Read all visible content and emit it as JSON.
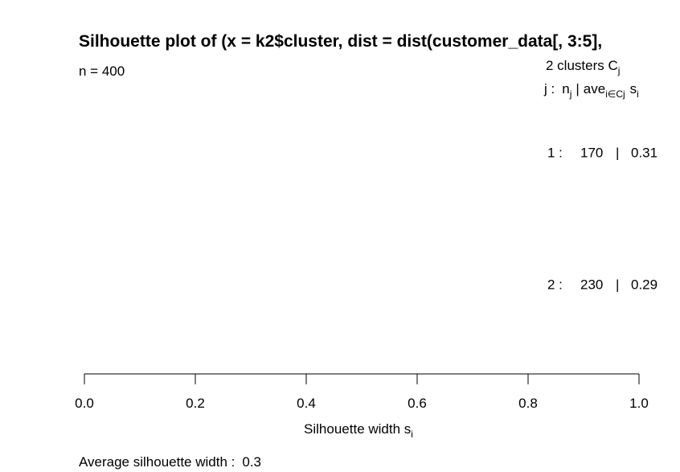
{
  "chart_data": {
    "type": "bar",
    "title": "Silhouette plot of (x = k2$cluster, dist = dist(customer_data[, 3:5],",
    "n_label": "n = 400",
    "clusters_header": "2  clusters  C",
    "clusters_header_sub": "j",
    "legend_header": {
      "j": "j :",
      "n": "n",
      "n_sub": "j",
      "sep": "|",
      "ave": "ave",
      "ave_sub": "i∈Cj",
      "s": "s",
      "s_sub": "i"
    },
    "clusters": [
      {
        "label": "1 :",
        "n": 170,
        "n_text": "170",
        "avg": 0.31,
        "avg_text": "0.31"
      },
      {
        "label": "2 :",
        "n": 230,
        "n_text": "230",
        "avg": 0.29,
        "avg_text": "0.29"
      }
    ],
    "xlabel": "Silhouette width s",
    "xlabel_sub": "i",
    "xlim": [
      0,
      1
    ],
    "xticks": [
      0,
      0.2,
      0.4,
      0.6,
      0.8,
      1
    ],
    "xtick_labels": [
      "0.0",
      "0.2",
      "0.4",
      "0.6",
      "0.8",
      "1.0"
    ],
    "footer_label": "Average silhouette width :",
    "footer_value": "0.3",
    "colors": {
      "text": "#000000",
      "axis": "#000000",
      "background": "#ffffff"
    }
  }
}
